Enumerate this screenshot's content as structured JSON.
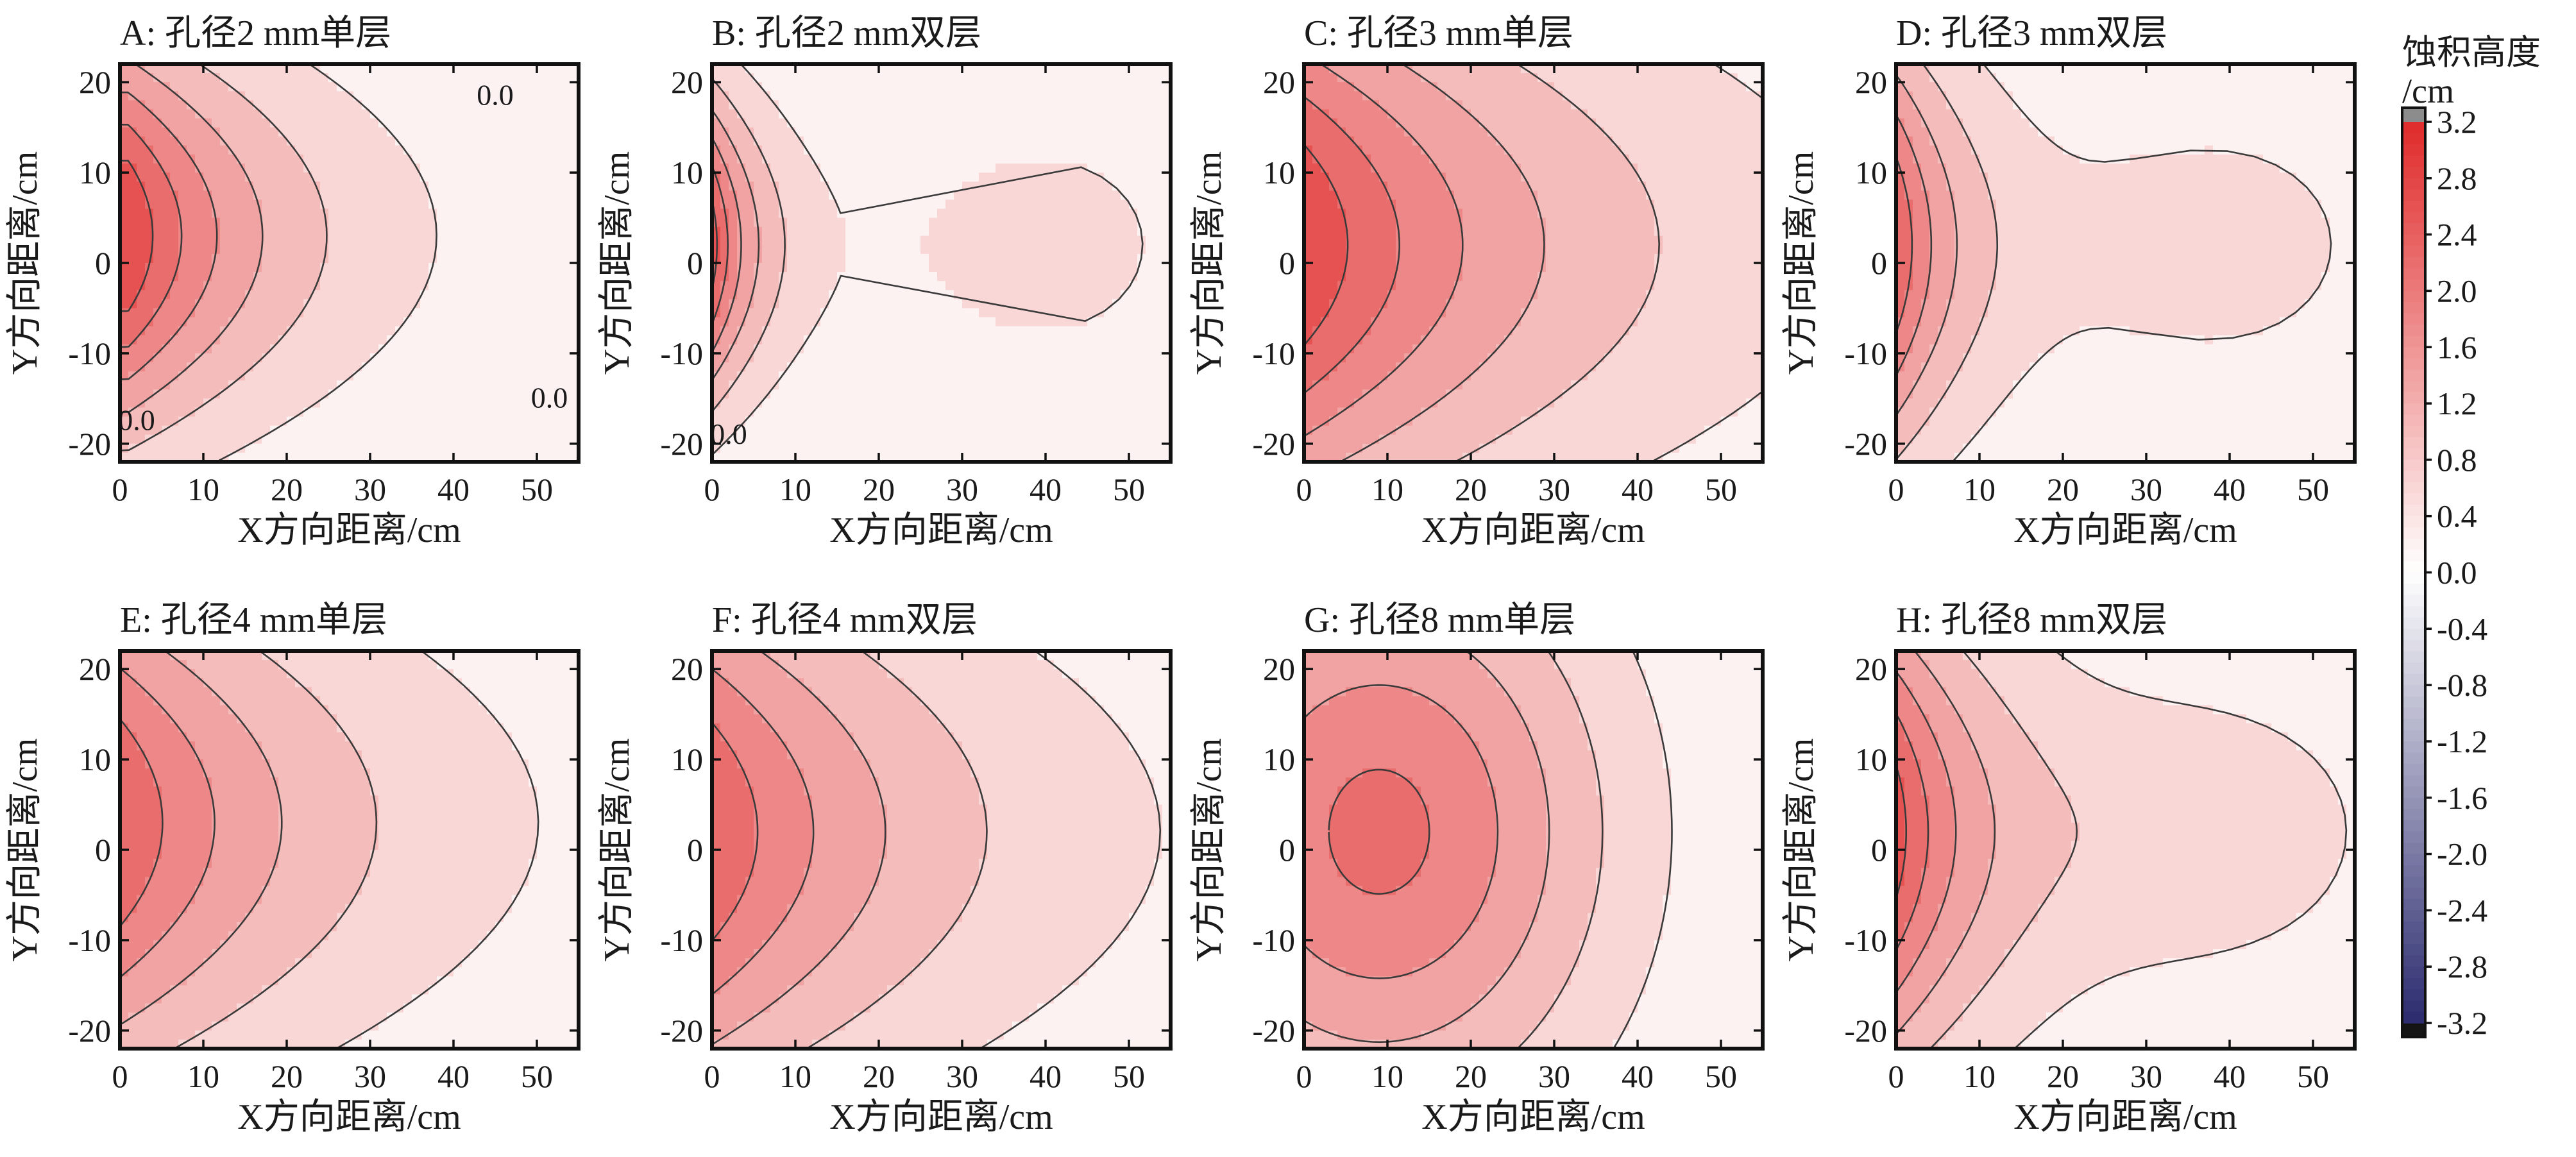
{
  "chart_data": {
    "type": "heatmap",
    "x_axis_label": "X方向距离/cm",
    "y_axis_label": "Y方向距离/cm",
    "xlim": [
      0,
      55
    ],
    "ylim": [
      -22,
      22
    ],
    "x_ticks": [
      "0",
      "10",
      "20",
      "30",
      "40",
      "50"
    ],
    "y_ticks": [
      "20",
      "10",
      "0",
      "-10",
      "-20"
    ],
    "contour_step": 0.4,
    "colorbar": {
      "label_line1": "蚀积高度",
      "label_line2": "/cm",
      "ticks": [
        "3.2",
        "2.8",
        "2.4",
        "2.0",
        "1.6",
        "1.2",
        "0.8",
        "0.4",
        "0.0",
        "-0.4",
        "-0.8",
        "-1.2",
        "-1.6",
        "-2.0",
        "-2.4",
        "-2.8",
        "-3.2"
      ],
      "range": [
        -3.2,
        3.2
      ],
      "positive_color": "#e02a2a",
      "negative_color": "#2b2a6e",
      "zero_color": "#ffffff",
      "over_color": "#8c8c8c",
      "under_color": "#151515"
    },
    "panels": [
      {
        "id": "A",
        "title": "A: 孔径2 mm单层",
        "peak": 2.8,
        "peak_x": 1,
        "peak_y": 3,
        "x_decay": 19,
        "y_spread": 15,
        "shape": "plume",
        "contour_labels": [
          {
            "text": "0.0",
            "x": 45,
            "y": 17.5
          },
          {
            "text": "0.0",
            "x": 51.5,
            "y": -16
          },
          {
            "text": "0.0",
            "x": 2,
            "y": -18.5
          }
        ]
      },
      {
        "id": "B",
        "title": "B: 孔径2 mm双层",
        "peak": 2.6,
        "peak_x": 0,
        "peak_y": 2,
        "x_decay": 7,
        "y_spread": 12,
        "shape": "double",
        "contour_labels": [
          {
            "text": "0.0",
            "x": 2,
            "y": -20
          }
        ]
      },
      {
        "id": "C",
        "title": "C: 孔径3 mm单层",
        "peak": 2.8,
        "peak_x": 0,
        "peak_y": 2,
        "x_decay": 34,
        "y_spread": 20,
        "shape": "plume",
        "contour_labels": []
      },
      {
        "id": "D",
        "title": "D: 孔径3 mm双层",
        "peak": 2.4,
        "peak_x": 0,
        "peak_y": 2,
        "x_decay": 10,
        "y_spread": 16,
        "shape": "double",
        "contour_labels": []
      },
      {
        "id": "E",
        "title": "E: 孔径4 mm单层",
        "peak": 2.4,
        "peak_x": 0,
        "peak_y": 3,
        "x_decay": 28,
        "y_spread": 19,
        "shape": "plume",
        "contour_labels": []
      },
      {
        "id": "F",
        "title": "F: 孔径4 mm双层",
        "peak": 2.4,
        "peak_x": 0,
        "peak_y": 2,
        "x_decay": 30,
        "y_spread": 20,
        "shape": "plume",
        "contour_labels": []
      },
      {
        "id": "G",
        "title": "G: 孔径8 mm单层",
        "peak": 2.1,
        "peak_x": 9,
        "peak_y": 2,
        "x_decay": 26,
        "y_spread": 22,
        "shape": "offset",
        "contour_labels": []
      },
      {
        "id": "H",
        "title": "H: 孔径8 mm双层",
        "peak": 2.6,
        "peak_x": 0,
        "peak_y": 2,
        "x_decay": 14,
        "y_spread": 18,
        "shape": "double",
        "contour_labels": []
      }
    ]
  }
}
